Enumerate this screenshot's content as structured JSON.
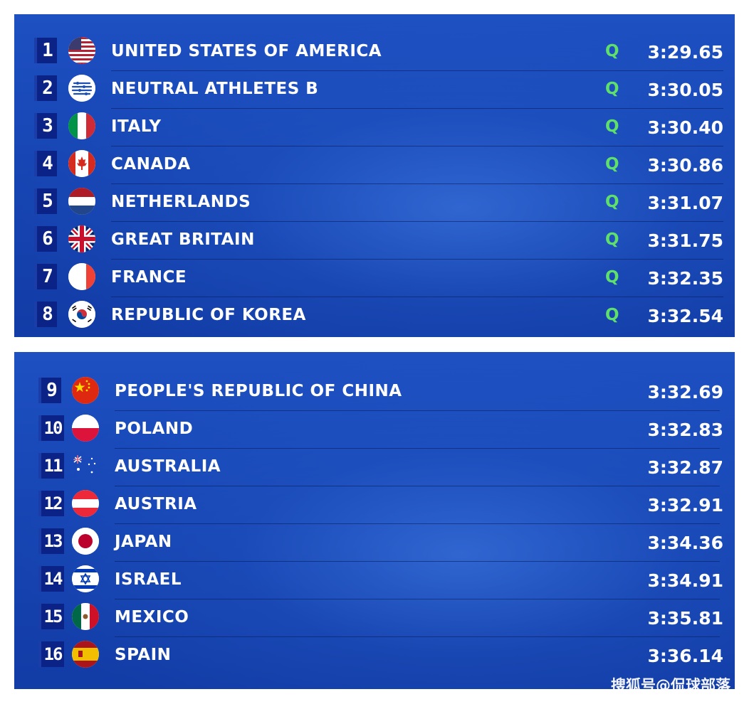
{
  "top_table": {
    "rows": [
      {
        "rank": "1",
        "country": "UNITED STATES OF AMERICA",
        "q": "Q",
        "time": "3:29.65",
        "flag": "usa-flag-icon"
      },
      {
        "rank": "2",
        "country": "NEUTRAL ATHLETES B",
        "q": "Q",
        "time": "3:30.05",
        "flag": "neutral-athletes-flag-icon"
      },
      {
        "rank": "3",
        "country": "ITALY",
        "q": "Q",
        "time": "3:30.40",
        "flag": "italy-flag-icon"
      },
      {
        "rank": "4",
        "country": "CANADA",
        "q": "Q",
        "time": "3:30.86",
        "flag": "canada-flag-icon"
      },
      {
        "rank": "5",
        "country": "NETHERLANDS",
        "q": "Q",
        "time": "3:31.07",
        "flag": "netherlands-flag-icon"
      },
      {
        "rank": "6",
        "country": "GREAT BRITAIN",
        "q": "Q",
        "time": "3:31.75",
        "flag": "great-britain-flag-icon"
      },
      {
        "rank": "7",
        "country": "FRANCE",
        "q": "Q",
        "time": "3:32.35",
        "flag": "france-flag-icon"
      },
      {
        "rank": "8",
        "country": "REPUBLIC OF KOREA",
        "q": "Q",
        "time": "3:32.54",
        "flag": "korea-flag-icon"
      }
    ]
  },
  "bottom_table": {
    "rows": [
      {
        "rank": "9",
        "country": "PEOPLE'S REPUBLIC OF CHINA",
        "time": "3:32.69",
        "flag": "china-flag-icon"
      },
      {
        "rank": "10",
        "country": "POLAND",
        "time": "3:32.83",
        "flag": "poland-flag-icon"
      },
      {
        "rank": "11",
        "country": "AUSTRALIA",
        "time": "3:32.87",
        "flag": "australia-flag-icon"
      },
      {
        "rank": "12",
        "country": "AUSTRIA",
        "time": "3:32.91",
        "flag": "austria-flag-icon"
      },
      {
        "rank": "13",
        "country": "JAPAN",
        "time": "3:34.36",
        "flag": "japan-flag-icon"
      },
      {
        "rank": "14",
        "country": "ISRAEL",
        "time": "3:34.91",
        "flag": "israel-flag-icon"
      },
      {
        "rank": "15",
        "country": "MEXICO",
        "time": "3:35.81",
        "flag": "mexico-flag-icon"
      },
      {
        "rank": "16",
        "country": "SPAIN",
        "time": "3:36.14",
        "flag": "spain-flag-icon"
      }
    ]
  },
  "watermark": "搜狐号@侃球部落",
  "colors": {
    "panel_blue": "#1746b4",
    "rank_box": "#0b2386",
    "qualified_green": "#5ee06a",
    "text_white": "#ffffff"
  }
}
